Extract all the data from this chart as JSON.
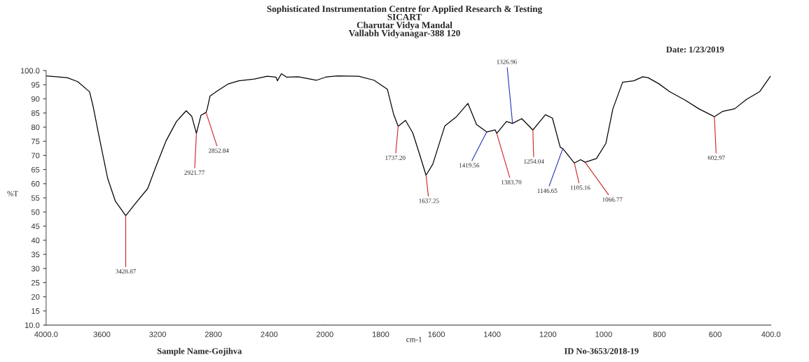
{
  "chart_data": [
    {
      "type": "line",
      "title": "Sophisticated Instrumentation Centre for Applied Research & Testing\nSICART\nCharutar Vidya Mandal\nVallabh Vidyanagar-388 120",
      "ylabel": "%T",
      "grid": false,
      "legend": false,
      "marker": "none",
      "xlim": [
        4000,
        2000
      ],
      "ylim": [
        10,
        100
      ],
      "xticks": [
        {
          "value": 4000,
          "label": "4000.0"
        },
        3600,
        3200,
        2800,
        2400,
        2000
      ],
      "yticks": [
        {
          "value": 100,
          "label": "100.0"
        },
        95,
        90,
        85,
        80,
        75,
        70,
        65,
        60,
        55,
        50,
        45,
        40,
        35,
        30,
        25,
        20,
        15,
        {
          "value": 10,
          "label": "10.0"
        }
      ],
      "line_style": "solid",
      "series": [
        {
          "color": "#000000",
          "x": [
            4000,
            3849,
            3774,
            3688,
            3663,
            3623,
            3558,
            3503,
            3428.87,
            3346,
            3271,
            3216,
            3141,
            3065,
            2995,
            2955,
            2921.77,
            2889,
            2852.84,
            2844,
            2824,
            2769,
            2693,
            2618,
            2507,
            2414,
            2351,
            2341,
            2312,
            2276,
            2191,
            2060,
            2000
          ],
          "values": [
            98.1,
            97.5,
            96.1,
            92.5,
            87.4,
            77.4,
            61.8,
            53.8,
            48.7,
            53.8,
            58.3,
            65.6,
            75,
            82,
            85.8,
            83.8,
            77.8,
            84.2,
            85.2,
            86.5,
            91,
            92.9,
            95.3,
            96.4,
            97,
            98,
            97.7,
            96.4,
            98.9,
            97.7,
            97.8,
            96.6,
            97.6
          ]
        }
      ],
      "annotations": [
        {
          "text": "3428.87",
          "x": 3428.87,
          "y": 48.7
        },
        {
          "text": "2921.77",
          "x": 2921.77,
          "y": 77.8
        },
        {
          "text": "2852.84",
          "x": 2852.84,
          "y": 85.2
        },
        "Sample Name-Gojihva"
      ]
    },
    {
      "type": "line",
      "xlabel": "cm-1",
      "grid": false,
      "legend": false,
      "marker": "none",
      "xlim": [
        2000,
        400
      ],
      "ylim": [
        10,
        100
      ],
      "xticks": [
        1800,
        1600,
        1400,
        1200,
        1000,
        800,
        600,
        {
          "value": 400,
          "label": "400.0"
        }
      ],
      "tick_labels": "x",
      "line_style": "solid",
      "series": [
        {
          "color": "#000000",
          "x": [
            2000,
            1990,
            1954,
            1879,
            1824,
            1776,
            1754,
            1737.2,
            1711,
            1685,
            1661,
            1637.25,
            1613,
            1570,
            1528,
            1487,
            1456,
            1419.56,
            1389,
            1383.7,
            1349,
            1326.96,
            1294,
            1254.04,
            1209,
            1184,
            1156,
            1146.65,
            1105.16,
            1083,
            1066.77,
            1026,
            992,
            967,
            932,
            892,
            860,
            841,
            803,
            764,
            707,
            659,
            602.97,
            573,
            530,
            488,
            440,
            402
          ],
          "values": [
            97.6,
            97.8,
            98.1,
            98,
            96.6,
            93.4,
            84.7,
            80.3,
            82.4,
            78,
            70.6,
            63,
            66.9,
            80.4,
            83.7,
            88.4,
            80.9,
            78.3,
            79,
            77.8,
            82,
            81.3,
            83,
            79,
            84.4,
            83.2,
            72.9,
            72.4,
            67.3,
            68.5,
            67.6,
            68.9,
            74.3,
            86.5,
            95.9,
            96.4,
            97.8,
            97.5,
            95.4,
            92.6,
            89.5,
            86.5,
            83.7,
            85.6,
            86.5,
            89.8,
            92.6,
            98
          ]
        }
      ],
      "annotations": [
        {
          "text": "1737.20",
          "x": 1737.2,
          "y": 80.3
        },
        {
          "text": "1637.25",
          "x": 1637.25,
          "y": 63
        },
        {
          "text": "1419.56",
          "x": 1419.56,
          "y": 78.3
        },
        {
          "text": "1383.70",
          "x": 1383.7,
          "y": 77.8
        },
        {
          "text": "1326.96",
          "x": 1326.96,
          "y": 81.3
        },
        {
          "text": "1254.04",
          "x": 1254.04,
          "y": 79
        },
        {
          "text": "1146.65",
          "x": 1146.65,
          "y": 72.4
        },
        {
          "text": "1105.16",
          "x": 1105.16,
          "y": 67.3
        },
        {
          "text": "1066.77",
          "x": 1066.77,
          "y": 67.6
        },
        {
          "text": "602.97",
          "x": 602.97,
          "y": 83.7
        },
        "Date: 1/23/2019",
        "ID No-3653/2018-19"
      ]
    }
  ]
}
